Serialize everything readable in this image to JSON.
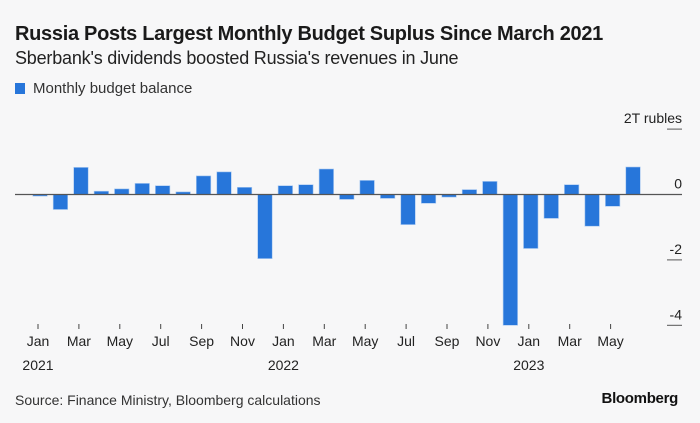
{
  "chart_data": {
    "type": "bar",
    "title": "Russia Posts Largest Monthly Budget Suplus Since March 2021",
    "subtitle": "Sberbank's dividends boosted Russia's revenues in June",
    "legend": [
      "Monthly budget balance"
    ],
    "legend_position": "top-left",
    "unit_label": "2T rubles",
    "ylim": [
      -4,
      2
    ],
    "yticks": [
      "2T rubles",
      "0",
      "-2",
      "-4"
    ],
    "ytick_values": [
      2,
      0,
      -2,
      -4
    ],
    "xtick_labels": [
      {
        "month": "Jan",
        "year": "2021"
      },
      {
        "month": "Mar",
        "year": ""
      },
      {
        "month": "May",
        "year": ""
      },
      {
        "month": "Jul",
        "year": ""
      },
      {
        "month": "Sep",
        "year": ""
      },
      {
        "month": "Nov",
        "year": ""
      },
      {
        "month": "Jan",
        "year": "2022"
      },
      {
        "month": "Mar",
        "year": ""
      },
      {
        "month": "May",
        "year": ""
      },
      {
        "month": "Jul",
        "year": ""
      },
      {
        "month": "Sep",
        "year": ""
      },
      {
        "month": "Nov",
        "year": ""
      },
      {
        "month": "Jan",
        "year": "2023"
      },
      {
        "month": "Mar",
        "year": ""
      },
      {
        "month": "May",
        "year": ""
      }
    ],
    "categories": [
      "2021-01",
      "2021-02",
      "2021-03",
      "2021-04",
      "2021-05",
      "2021-06",
      "2021-07",
      "2021-08",
      "2021-09",
      "2021-10",
      "2021-11",
      "2021-12",
      "2022-01",
      "2022-02",
      "2022-03",
      "2022-04",
      "2022-05",
      "2022-06",
      "2022-07",
      "2022-08",
      "2022-09",
      "2022-10",
      "2022-11",
      "2022-12",
      "2023-01",
      "2023-02",
      "2023-03",
      "2023-04",
      "2023-05",
      "2023-06"
    ],
    "series": [
      {
        "name": "Monthly budget balance",
        "color": "#2776da",
        "values": [
          -0.05,
          -0.46,
          0.83,
          0.1,
          0.17,
          0.34,
          0.27,
          0.08,
          0.57,
          0.69,
          0.22,
          -1.96,
          0.27,
          0.3,
          0.78,
          -0.15,
          0.43,
          -0.12,
          -0.92,
          -0.27,
          -0.08,
          0.15,
          0.4,
          -4.0,
          -1.65,
          -0.73,
          0.3,
          -0.97,
          -0.36,
          0.84
        ]
      }
    ]
  },
  "footer": {
    "source": "Source: Finance Ministry, Bloomberg calculations",
    "logo": "Bloomberg"
  }
}
